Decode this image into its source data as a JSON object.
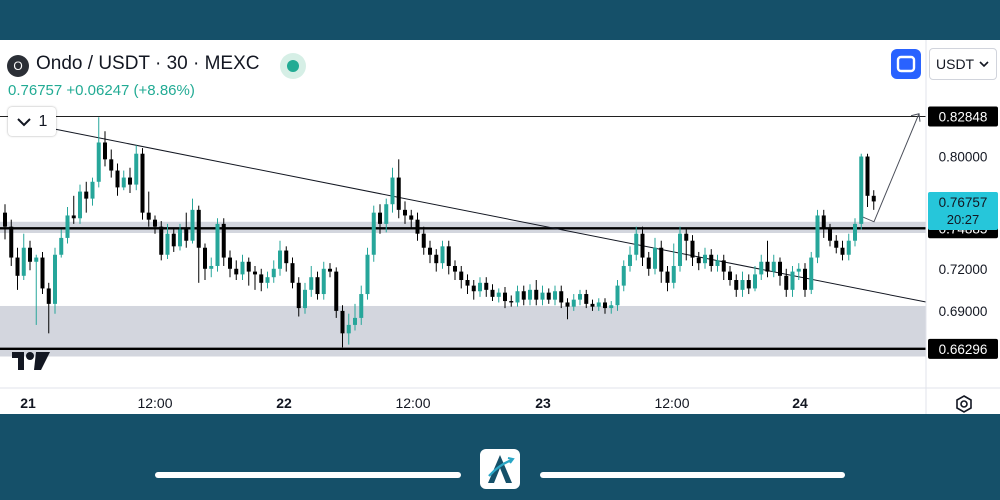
{
  "header": {
    "symbol_logo_letter": "O",
    "symbol": "Ondo / USDT · 30 · MEXC",
    "last_price": "0.76757",
    "change": "+0.06247 (+8.86%)",
    "interval_value": "1",
    "currency": "USDT"
  },
  "icons": {
    "live": "live-status-dot",
    "fullscreen": "fullscreen-icon",
    "dropdown": "chevron-down-icon",
    "settings": "settings-icon",
    "tradingview": "tradingview-logo",
    "brand": "brand-a-logo"
  },
  "colors": {
    "up": "#26a69a",
    "down": "#000000",
    "accent": "#2962ff",
    "zone": "#d1d4dc",
    "frame": "#155069"
  },
  "chart_data": {
    "type": "candlestick",
    "symbol": "Ondo / USDT",
    "timeframe": "30",
    "exchange": "MEXC",
    "x_tick_labels": [
      "21",
      "12:00",
      "22",
      "12:00",
      "23",
      "12:00",
      "24"
    ],
    "y_tick_labels": [
      "0.80000",
      "0.72000",
      "0.69000"
    ],
    "ylim": [
      0.655,
      0.836
    ],
    "price_labels": [
      {
        "value": "0.82848",
        "style": "dark"
      },
      {
        "value": "0.74885",
        "style": "dark"
      },
      {
        "value": "0.66296",
        "style": "dark"
      },
      {
        "value": "0.76757",
        "sub": "20:27",
        "style": "teal"
      }
    ],
    "horizontal_levels": [
      0.82848,
      0.74885,
      0.66296
    ],
    "zones": [
      {
        "from": 0.7455,
        "to": 0.7535
      },
      {
        "from": 0.6575,
        "to": 0.6935
      }
    ],
    "trendline": {
      "x1": 0,
      "y1": 0.8195,
      "x2": 1,
      "y2": 0.6963
    },
    "projection": [
      [
        0.874,
        0.7535
      ],
      [
        0.945,
        0.8305
      ]
    ],
    "grid": false,
    "candles": [
      [
        0.76,
        0.75,
        0.766,
        0.741
      ],
      [
        0.75,
        0.728,
        0.755,
        0.722
      ],
      [
        0.728,
        0.715,
        0.735,
        0.705
      ],
      [
        0.715,
        0.735,
        0.745,
        0.712
      ],
      [
        0.735,
        0.725,
        0.74,
        0.719
      ],
      [
        0.725,
        0.728,
        0.73,
        0.68
      ],
      [
        0.728,
        0.706,
        0.732,
        0.702
      ],
      [
        0.706,
        0.695,
        0.71,
        0.674
      ],
      [
        0.695,
        0.73,
        0.735,
        0.688
      ],
      [
        0.73,
        0.742,
        0.748,
        0.728
      ],
      [
        0.742,
        0.758,
        0.764,
        0.738
      ],
      [
        0.758,
        0.756,
        0.772,
        0.752
      ],
      [
        0.756,
        0.775,
        0.78,
        0.752
      ],
      [
        0.775,
        0.77,
        0.782,
        0.76
      ],
      [
        0.77,
        0.782,
        0.785,
        0.765
      ],
      [
        0.782,
        0.81,
        0.828,
        0.778
      ],
      [
        0.81,
        0.798,
        0.818,
        0.793
      ],
      [
        0.798,
        0.79,
        0.805,
        0.785
      ],
      [
        0.79,
        0.778,
        0.795,
        0.772
      ],
      [
        0.778,
        0.785,
        0.79,
        0.776
      ],
      [
        0.785,
        0.78,
        0.792,
        0.774
      ],
      [
        0.78,
        0.802,
        0.808,
        0.776
      ],
      [
        0.802,
        0.76,
        0.806,
        0.755
      ],
      [
        0.76,
        0.755,
        0.775,
        0.75
      ],
      [
        0.755,
        0.75,
        0.758,
        0.745
      ],
      [
        0.75,
        0.73,
        0.754,
        0.726
      ],
      [
        0.73,
        0.745,
        0.752,
        0.727
      ],
      [
        0.745,
        0.736,
        0.748,
        0.732
      ],
      [
        0.736,
        0.748,
        0.752,
        0.733
      ],
      [
        0.748,
        0.74,
        0.76,
        0.735
      ],
      [
        0.74,
        0.762,
        0.77,
        0.738
      ],
      [
        0.762,
        0.735,
        0.765,
        0.71
      ],
      [
        0.735,
        0.72,
        0.738,
        0.712
      ],
      [
        0.72,
        0.722,
        0.728,
        0.714
      ],
      [
        0.722,
        0.752,
        0.756,
        0.718
      ],
      [
        0.752,
        0.728,
        0.756,
        0.722
      ],
      [
        0.728,
        0.72,
        0.733,
        0.714
      ],
      [
        0.72,
        0.716,
        0.726,
        0.712
      ],
      [
        0.716,
        0.725,
        0.73,
        0.712
      ],
      [
        0.725,
        0.718,
        0.728,
        0.708
      ],
      [
        0.718,
        0.716,
        0.722,
        0.705
      ],
      [
        0.716,
        0.71,
        0.72,
        0.704
      ],
      [
        0.71,
        0.714,
        0.718,
        0.706
      ],
      [
        0.714,
        0.72,
        0.726,
        0.71
      ],
      [
        0.72,
        0.733,
        0.74,
        0.715
      ],
      [
        0.733,
        0.724,
        0.736,
        0.718
      ],
      [
        0.724,
        0.71,
        0.728,
        0.706
      ],
      [
        0.71,
        0.692,
        0.714,
        0.686
      ],
      [
        0.692,
        0.705,
        0.71,
        0.688
      ],
      [
        0.705,
        0.714,
        0.722,
        0.7
      ],
      [
        0.714,
        0.702,
        0.718,
        0.698
      ],
      [
        0.702,
        0.72,
        0.725,
        0.698
      ],
      [
        0.72,
        0.718,
        0.724,
        0.714
      ],
      [
        0.718,
        0.69,
        0.721,
        0.685
      ],
      [
        0.69,
        0.674,
        0.694,
        0.664
      ],
      [
        0.674,
        0.68,
        0.688,
        0.666
      ],
      [
        0.68,
        0.685,
        0.695,
        0.676
      ],
      [
        0.685,
        0.702,
        0.708,
        0.68
      ],
      [
        0.702,
        0.73,
        0.735,
        0.698
      ],
      [
        0.73,
        0.76,
        0.765,
        0.725
      ],
      [
        0.76,
        0.752,
        0.766,
        0.745
      ],
      [
        0.752,
        0.766,
        0.77,
        0.746
      ],
      [
        0.766,
        0.785,
        0.792,
        0.76
      ],
      [
        0.785,
        0.762,
        0.798,
        0.756
      ],
      [
        0.762,
        0.758,
        0.768,
        0.752
      ],
      [
        0.758,
        0.755,
        0.762,
        0.748
      ],
      [
        0.755,
        0.745,
        0.76,
        0.74
      ],
      [
        0.745,
        0.735,
        0.75,
        0.73
      ],
      [
        0.735,
        0.73,
        0.74,
        0.724
      ],
      [
        0.73,
        0.724,
        0.734,
        0.718
      ],
      [
        0.724,
        0.736,
        0.74,
        0.72
      ],
      [
        0.736,
        0.722,
        0.74,
        0.716
      ],
      [
        0.722,
        0.718,
        0.726,
        0.712
      ],
      [
        0.718,
        0.712,
        0.722,
        0.706
      ],
      [
        0.712,
        0.708,
        0.716,
        0.702
      ],
      [
        0.708,
        0.704,
        0.712,
        0.698
      ],
      [
        0.704,
        0.71,
        0.714,
        0.7
      ],
      [
        0.71,
        0.705,
        0.714,
        0.7
      ],
      [
        0.705,
        0.7,
        0.709,
        0.697
      ],
      [
        0.7,
        0.703,
        0.706,
        0.696
      ],
      [
        0.703,
        0.697,
        0.707,
        0.692
      ],
      [
        0.697,
        0.696,
        0.701,
        0.693
      ],
      [
        0.696,
        0.704,
        0.708,
        0.693
      ],
      [
        0.704,
        0.698,
        0.708,
        0.694
      ],
      [
        0.698,
        0.705,
        0.709,
        0.694
      ],
      [
        0.705,
        0.698,
        0.712,
        0.694
      ],
      [
        0.698,
        0.703,
        0.708,
        0.694
      ],
      [
        0.703,
        0.698,
        0.706,
        0.695
      ],
      [
        0.698,
        0.704,
        0.708,
        0.694
      ],
      [
        0.704,
        0.696,
        0.708,
        0.692
      ],
      [
        0.696,
        0.693,
        0.699,
        0.684
      ],
      [
        0.693,
        0.698,
        0.702,
        0.69
      ],
      [
        0.698,
        0.702,
        0.705,
        0.694
      ],
      [
        0.702,
        0.695,
        0.705,
        0.692
      ],
      [
        0.695,
        0.693,
        0.698,
        0.69
      ],
      [
        0.693,
        0.696,
        0.699,
        0.69
      ],
      [
        0.696,
        0.692,
        0.699,
        0.688
      ],
      [
        0.692,
        0.694,
        0.697,
        0.688
      ],
      [
        0.694,
        0.708,
        0.712,
        0.69
      ],
      [
        0.708,
        0.722,
        0.726,
        0.704
      ],
      [
        0.722,
        0.73,
        0.736,
        0.718
      ],
      [
        0.73,
        0.745,
        0.75,
        0.726
      ],
      [
        0.745,
        0.728,
        0.75,
        0.722
      ],
      [
        0.728,
        0.72,
        0.732,
        0.715
      ],
      [
        0.72,
        0.735,
        0.742,
        0.716
      ],
      [
        0.735,
        0.718,
        0.74,
        0.71
      ],
      [
        0.718,
        0.71,
        0.722,
        0.704
      ],
      [
        0.71,
        0.722,
        0.738,
        0.706
      ],
      [
        0.722,
        0.745,
        0.75,
        0.718
      ],
      [
        0.745,
        0.74,
        0.748,
        0.726
      ],
      [
        0.74,
        0.728,
        0.744,
        0.722
      ],
      [
        0.728,
        0.724,
        0.732,
        0.719
      ],
      [
        0.724,
        0.73,
        0.735,
        0.72
      ],
      [
        0.73,
        0.722,
        0.734,
        0.718
      ],
      [
        0.722,
        0.726,
        0.73,
        0.718
      ],
      [
        0.726,
        0.718,
        0.73,
        0.712
      ],
      [
        0.718,
        0.712,
        0.722,
        0.708
      ],
      [
        0.712,
        0.705,
        0.716,
        0.7
      ],
      [
        0.705,
        0.712,
        0.718,
        0.7
      ],
      [
        0.712,
        0.706,
        0.716,
        0.702
      ],
      [
        0.706,
        0.716,
        0.722,
        0.704
      ],
      [
        0.716,
        0.725,
        0.73,
        0.712
      ],
      [
        0.725,
        0.718,
        0.74,
        0.714
      ],
      [
        0.718,
        0.725,
        0.73,
        0.714
      ],
      [
        0.725,
        0.715,
        0.728,
        0.708
      ],
      [
        0.715,
        0.705,
        0.72,
        0.7
      ],
      [
        0.705,
        0.718,
        0.722,
        0.7
      ],
      [
        0.718,
        0.72,
        0.724,
        0.712
      ],
      [
        0.72,
        0.705,
        0.724,
        0.7
      ],
      [
        0.705,
        0.728,
        0.732,
        0.702
      ],
      [
        0.728,
        0.758,
        0.762,
        0.724
      ],
      [
        0.758,
        0.748,
        0.762,
        0.742
      ],
      [
        0.748,
        0.74,
        0.752,
        0.736
      ],
      [
        0.74,
        0.735,
        0.744,
        0.731
      ],
      [
        0.735,
        0.73,
        0.74,
        0.726
      ],
      [
        0.73,
        0.74,
        0.745,
        0.726
      ],
      [
        0.74,
        0.752,
        0.756,
        0.736
      ],
      [
        0.752,
        0.8,
        0.802,
        0.748
      ],
      [
        0.8,
        0.772,
        0.802,
        0.764
      ],
      [
        0.772,
        0.768,
        0.776,
        0.762
      ]
    ]
  }
}
